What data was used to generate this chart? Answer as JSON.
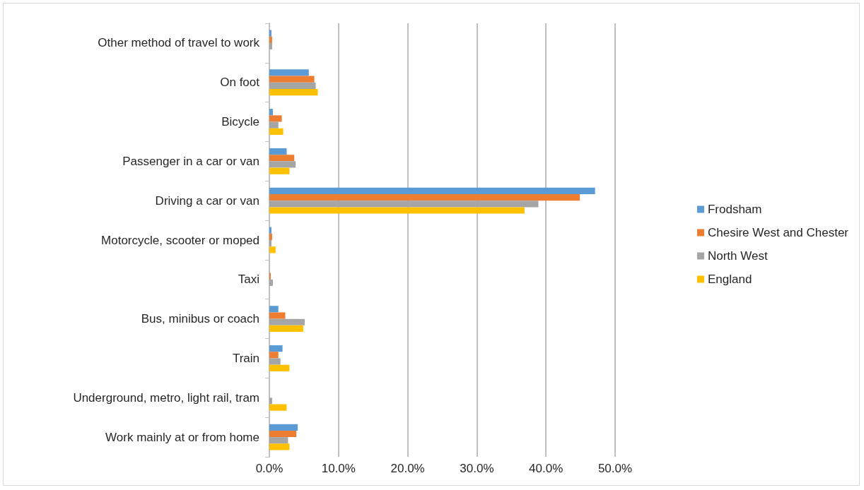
{
  "chart_data": {
    "type": "bar",
    "orientation": "horizontal",
    "categories": [
      "Other method of travel to work",
      "On foot",
      "Bicycle",
      "Passenger in a car or van",
      "Driving a car or van",
      "Motorcycle, scooter or moped",
      "Taxi",
      "Bus, minibus or coach",
      "Train",
      "Underground, metro, light rail, tram",
      "Work mainly at or from home"
    ],
    "series": [
      {
        "name": "Frodsham",
        "color": "#5b9bd5",
        "values": [
          0.3,
          5.7,
          0.5,
          2.5,
          47.1,
          0.3,
          0,
          1.3,
          1.9,
          0,
          4.1
        ]
      },
      {
        "name": "Chesire West and Chester",
        "color": "#ed7d31",
        "values": [
          0.4,
          6.5,
          1.8,
          3.6,
          44.9,
          0.4,
          0.2,
          2.3,
          1.3,
          0,
          3.9
        ]
      },
      {
        "name": "North West",
        "color": "#a5a5a5",
        "values": [
          0.4,
          6.7,
          1.3,
          3.8,
          38.9,
          0.3,
          0.5,
          5.1,
          1.6,
          0.4,
          2.7
        ]
      },
      {
        "name": "England",
        "color": "#ffc000",
        "values": [
          0,
          7.0,
          2.0,
          2.9,
          36.9,
          0.9,
          0,
          4.9,
          2.9,
          2.5,
          2.9
        ]
      }
    ],
    "xlim": [
      0,
      50
    ],
    "xticks": [
      {
        "value": 0,
        "label": "0.0%"
      },
      {
        "value": 10,
        "label": "10.0%"
      },
      {
        "value": 20,
        "label": "20.0%"
      },
      {
        "value": 30,
        "label": "30.0%"
      },
      {
        "value": 40,
        "label": "40.0%"
      },
      {
        "value": 50,
        "label": "50.0%"
      }
    ],
    "grid": "x",
    "legend": "right"
  }
}
